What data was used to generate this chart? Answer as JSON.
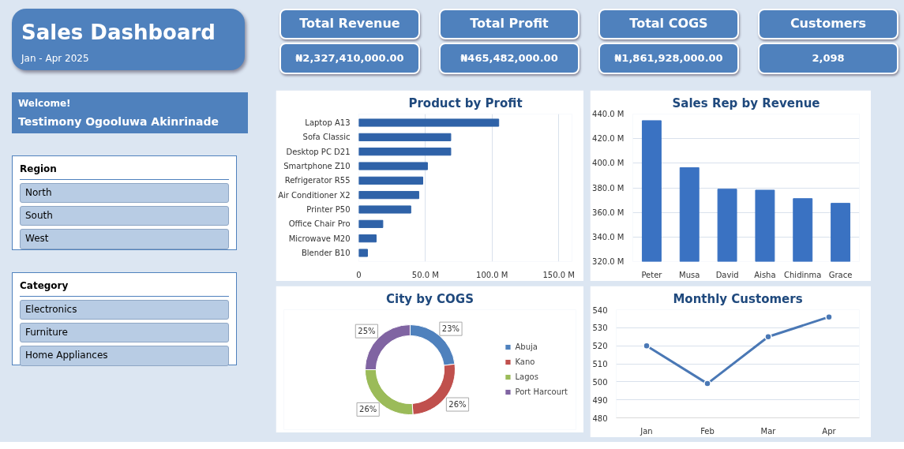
{
  "chart_data": [
    {
      "type": "other",
      "title": "Sales Dashboard",
      "subtitle": "Jan - Apr 2025"
    },
    {
      "type": "other",
      "title": "Welcome!",
      "annotations": [
        "Testimony Ogooluwa Akinrinade"
      ]
    },
    {
      "type": "other",
      "title": "Region",
      "annotations": [
        "North",
        "South",
        "West"
      ]
    },
    {
      "type": "other",
      "title": "Category",
      "annotations": [
        "Electronics",
        "Furniture",
        "Home Appliances"
      ]
    },
    {
      "type": "other",
      "title": "Total Revenue",
      "annotations": [
        "₦2,327,410,000.00"
      ]
    },
    {
      "type": "other",
      "title": "Total Profit",
      "annotations": [
        "₦465,482,000.00"
      ]
    },
    {
      "type": "other",
      "title": "Total COGS",
      "annotations": [
        "₦1,861,928,000.00"
      ]
    },
    {
      "type": "other",
      "title": "Customers",
      "annotations": [
        "2,098"
      ]
    },
    {
      "type": "bar",
      "orientation": "horizontal",
      "title": "Product by Profit",
      "categories": [
        "Laptop A13",
        "Sofa Classic",
        "Desktop PC D21",
        "Smartphone Z10",
        "Refrigerator R55",
        "Air Conditioner X2",
        "Printer P50",
        "Office Chair Pro",
        "Microwave M20",
        "Blender B10"
      ],
      "values": [
        105,
        69,
        69,
        51.5,
        48,
        45,
        39,
        18,
        13,
        6.5
      ],
      "color": "#2f62a8",
      "xlim": [
        0,
        160
      ],
      "xticks": [
        0,
        {
          "value": 50,
          "label": "50.0 M"
        },
        {
          "value": 100,
          "label": "100.0 M"
        },
        {
          "value": 150,
          "label": "150.0 M"
        }
      ],
      "grid": "x"
    },
    {
      "type": "bar",
      "title": "Sales Rep by Revenue",
      "categories": [
        "Peter",
        "Musa",
        "David",
        "Aisha",
        "Chidinma",
        "Grace"
      ],
      "values": [
        434.6,
        396.4,
        378.9,
        378.1,
        371.2,
        367.4
      ],
      "color": "#3a72c2",
      "ylim": [
        320,
        440
      ],
      "yticks": [
        {
          "value": 320,
          "label": "320.0 M"
        },
        {
          "value": 340,
          "label": "340.0 M"
        },
        {
          "value": 360,
          "label": "360.0 M"
        },
        {
          "value": 380,
          "label": "380.0 M"
        },
        {
          "value": 400,
          "label": "400.0 M"
        },
        {
          "value": 420,
          "label": "420.0 M"
        },
        {
          "value": 440,
          "label": "440.0 M"
        }
      ],
      "grid": "y"
    },
    {
      "type": "donut",
      "title": "City by COGS",
      "categories": [
        "Abuja",
        "Kano",
        "Lagos",
        "Port Harcourt"
      ],
      "values": [
        23,
        26,
        26,
        25
      ],
      "colors": [
        "#4f81bd",
        "#c0504d",
        "#9bbb59",
        "#8064a2"
      ],
      "value_labels": [
        "23%",
        "26%",
        "26%",
        "25%"
      ],
      "legend": "right"
    },
    {
      "type": "line",
      "title": "Monthly Customers",
      "categories": [
        "Jan",
        "Feb",
        "Mar",
        "Apr"
      ],
      "values": [
        520,
        499,
        525,
        536
      ],
      "color": "#4a78b5",
      "ylim": [
        480,
        540
      ],
      "yticks": [
        480,
        490,
        500,
        510,
        520,
        530,
        540
      ],
      "grid": "y",
      "marker": "circle",
      "line_style": "solid"
    }
  ]
}
